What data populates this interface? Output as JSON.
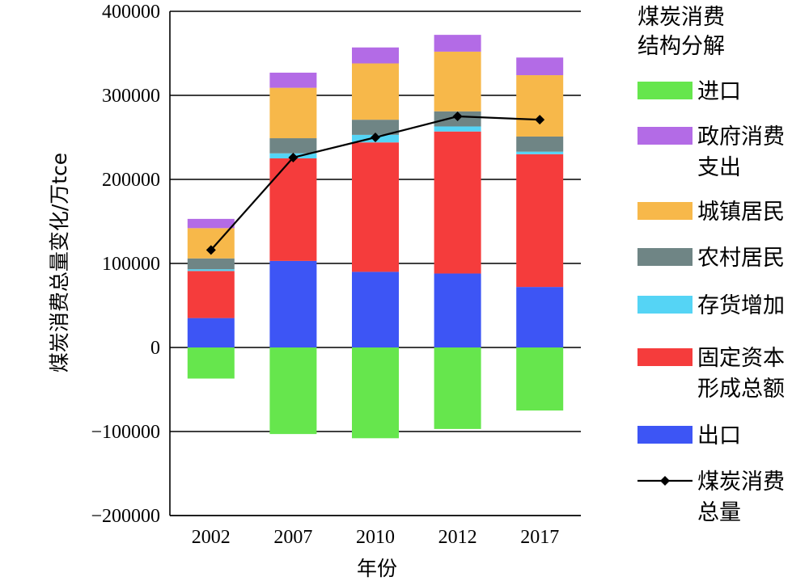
{
  "chart_data": {
    "type": "bar",
    "stacked": true,
    "categories": [
      "2002",
      "2007",
      "2010",
      "2012",
      "2017"
    ],
    "xlabel": "年份",
    "ylabel": "煤炭消费总量变化/万tce",
    "ylim": [
      -200000,
      400000
    ],
    "yticks": [
      -200000,
      -100000,
      0,
      100000,
      200000,
      300000,
      400000
    ],
    "ytick_labels": [
      "−200000",
      "−100000",
      "0",
      "100000",
      "200000",
      "300000",
      "400000"
    ],
    "grid": "horizontal",
    "legend": {
      "title_lines": [
        "煤炭消费",
        "结构分解"
      ],
      "position": "right"
    },
    "series": [
      {
        "name": "进口",
        "label_lines": [
          "进口"
        ],
        "color": "#66e64d",
        "values": [
          -37000,
          -103000,
          -108000,
          -97000,
          -75000
        ]
      },
      {
        "name": "政府消费支出",
        "label_lines": [
          "政府消费",
          "支出"
        ],
        "color": "#b36be6",
        "values": [
          11000,
          18000,
          19000,
          20000,
          21000
        ]
      },
      {
        "name": "城镇居民",
        "label_lines": [
          "城镇居民"
        ],
        "color": "#f7b84a",
        "values": [
          36000,
          60000,
          67000,
          71000,
          73000
        ]
      },
      {
        "name": "农村居民",
        "label_lines": [
          "农村居民"
        ],
        "color": "#6f8585",
        "values": [
          13000,
          18000,
          18000,
          18000,
          18000
        ]
      },
      {
        "name": "存货增加",
        "label_lines": [
          "存货增加"
        ],
        "color": "#55d4f5",
        "values": [
          2000,
          6000,
          9000,
          6000,
          3000
        ]
      },
      {
        "name": "固定资本形成总额",
        "label_lines": [
          "固定资本",
          "形成总额"
        ],
        "color": "#f53c3c",
        "values": [
          56000,
          122000,
          154000,
          169000,
          158000
        ]
      },
      {
        "name": "出口",
        "label_lines": [
          "出口"
        ],
        "color": "#3d55f5",
        "values": [
          35000,
          103000,
          90000,
          88000,
          72000
        ]
      }
    ],
    "line_series": {
      "name": "煤炭消费总量",
      "label_lines": [
        "煤炭消费",
        "总量"
      ],
      "color": "#000000",
      "values": [
        116000,
        226000,
        250000,
        275000,
        271000
      ]
    }
  }
}
